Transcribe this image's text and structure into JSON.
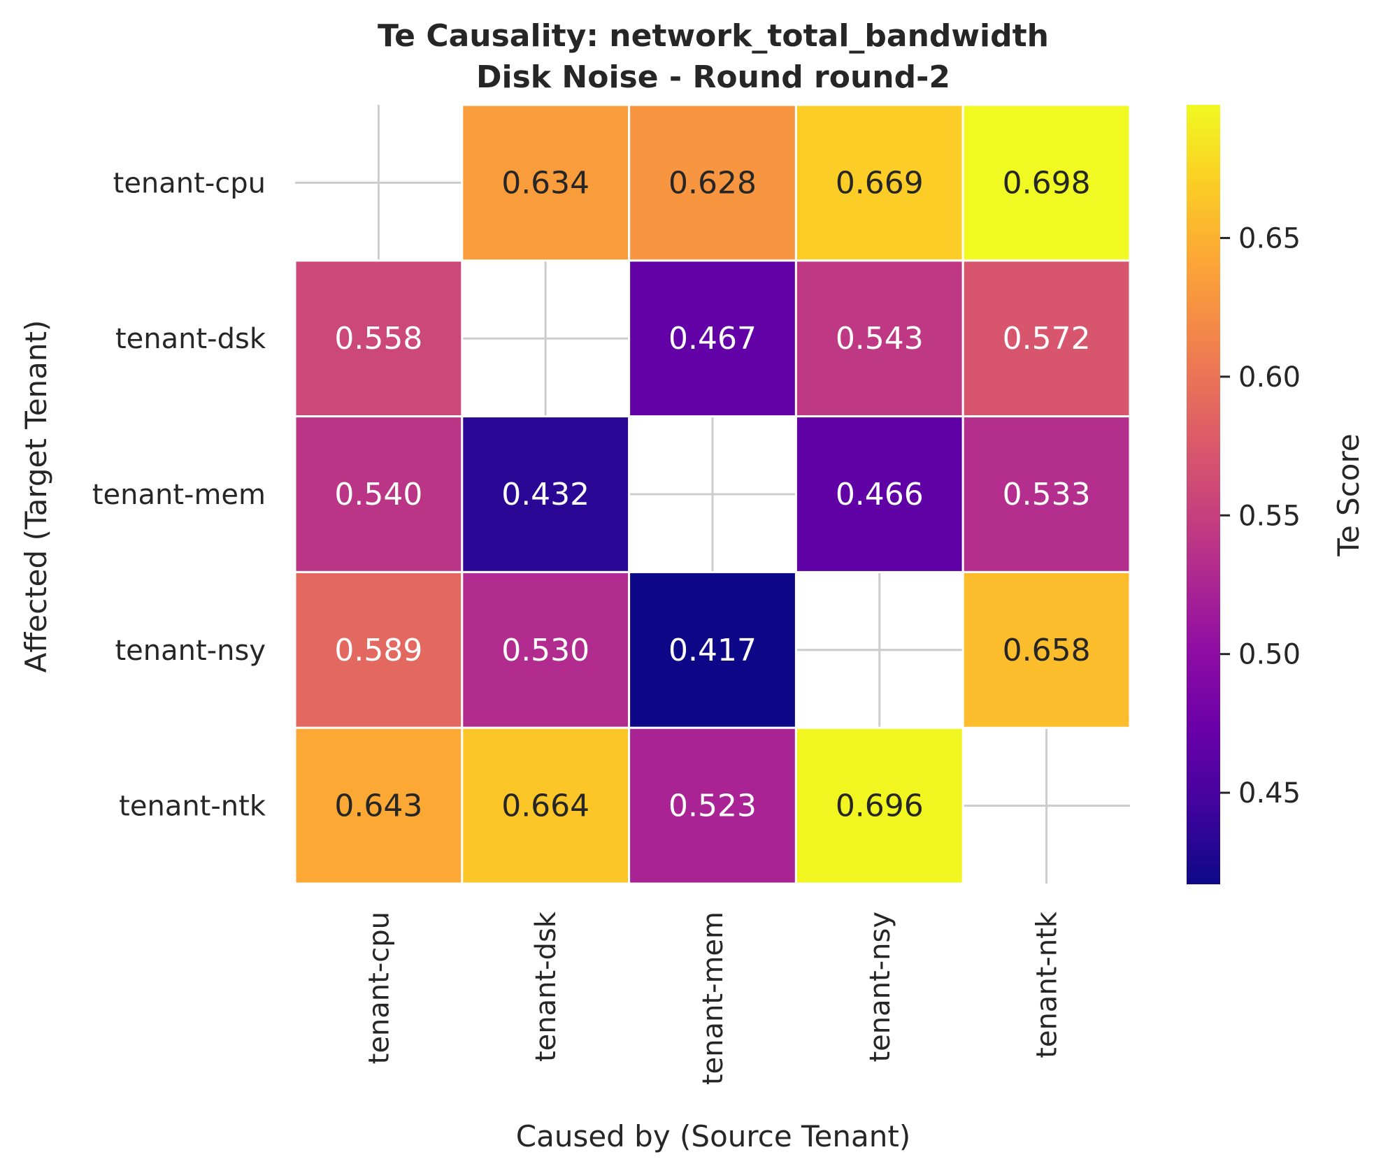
{
  "chart_data": {
    "type": "heatmap",
    "title_line1": "Te Causality: network_total_bandwidth",
    "title_line2": "Disk Noise - Round round-2",
    "xlabel": "Caused by (Source Tenant)",
    "ylabel": "Affected (Target Tenant)",
    "x_categories": [
      "tenant-cpu",
      "tenant-dsk",
      "tenant-mem",
      "tenant-nsy",
      "tenant-ntk"
    ],
    "y_categories": [
      "tenant-cpu",
      "tenant-dsk",
      "tenant-mem",
      "tenant-nsy",
      "tenant-ntk"
    ],
    "values": [
      [
        null,
        0.634,
        0.628,
        0.669,
        0.698
      ],
      [
        0.558,
        null,
        0.467,
        0.543,
        0.572
      ],
      [
        0.54,
        0.432,
        null,
        0.466,
        0.533
      ],
      [
        0.589,
        0.53,
        0.417,
        null,
        0.658
      ],
      [
        0.643,
        0.664,
        0.523,
        0.696,
        null
      ]
    ],
    "value_labels": [
      [
        "",
        "0.634",
        "0.628",
        "0.669",
        "0.698"
      ],
      [
        "0.558",
        "",
        "0.467",
        "0.543",
        "0.572"
      ],
      [
        "0.540",
        "0.432",
        "",
        "0.466",
        "0.533"
      ],
      [
        "0.589",
        "0.530",
        "0.417",
        "",
        "0.658"
      ],
      [
        "0.643",
        "0.664",
        "0.523",
        "0.696",
        ""
      ]
    ],
    "colormap": "plasma",
    "vmin": 0.417,
    "vmax": 0.698,
    "colorbar": {
      "label": "Te Score",
      "ticks": [
        0.45,
        0.5,
        0.55,
        0.6,
        0.65
      ],
      "tick_labels": [
        "0.45",
        "0.50",
        "0.55",
        "0.60",
        "0.65"
      ]
    },
    "grid": true
  }
}
